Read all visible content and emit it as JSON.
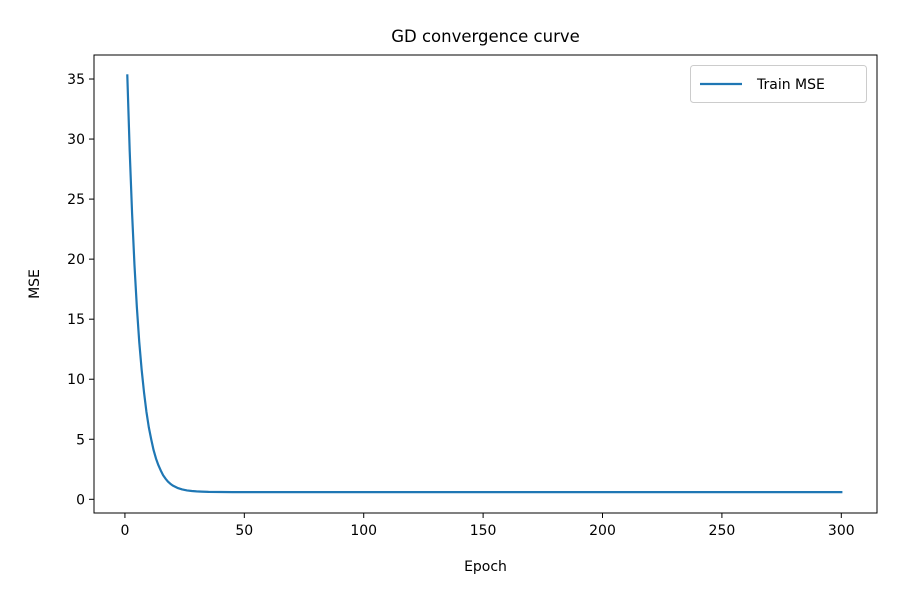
{
  "chart_data": {
    "type": "line",
    "title": "GD convergence curve",
    "xlabel": "Epoch",
    "ylabel": "MSE",
    "xlim": [
      -12.95,
      314.95
    ],
    "ylim": [
      -1.14,
      37.0
    ],
    "xticks": [
      0,
      50,
      100,
      150,
      200,
      250,
      300
    ],
    "yticks": [
      0,
      5,
      10,
      15,
      20,
      25,
      30,
      35
    ],
    "grid": false,
    "legend_position": "top-right",
    "series": [
      {
        "name": "Train MSE",
        "color": "#1f77b4",
        "x": [
          1,
          2,
          3,
          4,
          5,
          6,
          7,
          8,
          9,
          10,
          11,
          12,
          13,
          14,
          15,
          16,
          17,
          18,
          19,
          20,
          22,
          24,
          26,
          28,
          30,
          32,
          35,
          40,
          45,
          50,
          60,
          80,
          100,
          150,
          200,
          250,
          300
        ],
        "y": [
          35.3,
          29.0,
          23.8,
          19.5,
          16.0,
          13.1,
          10.8,
          8.9,
          7.3,
          6.0,
          5.0,
          4.1,
          3.4,
          2.85,
          2.4,
          2.0,
          1.72,
          1.48,
          1.3,
          1.15,
          0.95,
          0.82,
          0.74,
          0.69,
          0.66,
          0.64,
          0.62,
          0.61,
          0.6,
          0.6,
          0.6,
          0.6,
          0.6,
          0.6,
          0.6,
          0.6,
          0.6
        ]
      }
    ]
  }
}
